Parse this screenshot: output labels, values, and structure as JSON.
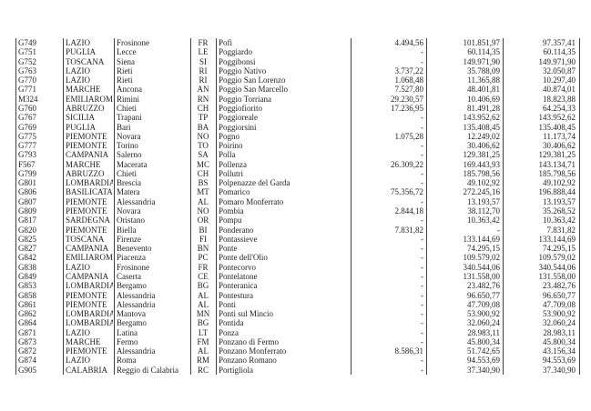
{
  "rows": [
    {
      "code": "G749",
      "region": "LAZIO",
      "province": "Frosinone",
      "sigla": "FR",
      "comune": "Pofi",
      "v1": "4.494,56",
      "v2": "101.851,97",
      "v3": "97.357,41"
    },
    {
      "code": "G751",
      "region": "PUGLIA",
      "province": "Lecce",
      "sigla": "LE",
      "comune": "Poggiardo",
      "v1": "-",
      "v2": "60.114,35",
      "v3": "60.114,35"
    },
    {
      "code": "G752",
      "region": "TOSCANA",
      "province": "Siena",
      "sigla": "SI",
      "comune": "Poggibonsi",
      "v1": "-",
      "v2": "149.971,90",
      "v3": "149.971,90"
    },
    {
      "code": "G763",
      "region": "LAZIO",
      "province": "Rieti",
      "sigla": "RI",
      "comune": "Poggio Nativo",
      "v1": "3.737,22",
      "v2": "35.788,09",
      "v3": "32.050,87"
    },
    {
      "code": "G770",
      "region": "LAZIO",
      "province": "Rieti",
      "sigla": "RI",
      "comune": "Poggio San Lorenzo",
      "v1": "1.068,48",
      "v2": "11.365,88",
      "v3": "10.297,40"
    },
    {
      "code": "G771",
      "region": "MARCHE",
      "province": "Ancona",
      "sigla": "AN",
      "comune": "Poggio San Marcello",
      "v1": "7.527,80",
      "v2": "48.401,81",
      "v3": "40.874,01"
    },
    {
      "code": "M324",
      "region": "EMILIAROMA",
      "province": "Rimini",
      "sigla": "RN",
      "comune": "Poggio Torriana",
      "v1": "29.230,57",
      "v2": "10.406,69",
      "v3": "18.823,88"
    },
    {
      "code": "G760",
      "region": "ABRUZZO",
      "province": "Chieti",
      "sigla": "CH",
      "comune": "Poggiofiorito",
      "v1": "17.236,95",
      "v2": "81.491,28",
      "v3": "64.254,33"
    },
    {
      "code": "G767",
      "region": "SICILIA",
      "province": "Trapani",
      "sigla": "TP",
      "comune": "Poggioreale",
      "v1": "-",
      "v2": "143.952,62",
      "v3": "143.952,62"
    },
    {
      "code": "G769",
      "region": "PUGLIA",
      "province": "Bari",
      "sigla": "BA",
      "comune": "Poggiorsini",
      "v1": "-",
      "v2": "135.408,45",
      "v3": "135.408,45"
    },
    {
      "code": "G775",
      "region": "PIEMONTE",
      "province": "Novara",
      "sigla": "NO",
      "comune": "Pogno",
      "v1": "1.075,28",
      "v2": "12.249,02",
      "v3": "11.173,74"
    },
    {
      "code": "G777",
      "region": "PIEMONTE",
      "province": "Torino",
      "sigla": "TO",
      "comune": "Poirino",
      "v1": "-",
      "v2": "30.406,62",
      "v3": "30.406,62"
    },
    {
      "code": "G793",
      "region": "CAMPANIA",
      "province": "Salerno",
      "sigla": "SA",
      "comune": "Polla",
      "v1": "-",
      "v2": "129.381,25",
      "v3": "129.381,25"
    },
    {
      "code": "F567",
      "region": "MARCHE",
      "province": "Macerata",
      "sigla": "MC",
      "comune": "Pollenza",
      "v1": "26.309,22",
      "v2": "169.443,93",
      "v3": "143.134,71"
    },
    {
      "code": "G799",
      "region": "ABRUZZO",
      "province": "Chieti",
      "sigla": "CH",
      "comune": "Pollutri",
      "v1": "-",
      "v2": "185.798,56",
      "v3": "185.798,56"
    },
    {
      "code": "G801",
      "region": "LOMBARDIA",
      "province": "Brescia",
      "sigla": "BS",
      "comune": "Polpenazze del Garda",
      "v1": "-",
      "v2": "49.102,92",
      "v3": "49.102,92"
    },
    {
      "code": "G806",
      "region": "BASILICATA",
      "province": "Matera",
      "sigla": "MT",
      "comune": "Pomarico",
      "v1": "75.356,72",
      "v2": "272.245,16",
      "v3": "196.888,44"
    },
    {
      "code": "G807",
      "region": "PIEMONTE",
      "province": "Alessandria",
      "sigla": "AL",
      "comune": "Pomaro Monferrato",
      "v1": "-",
      "v2": "13.193,57",
      "v3": "13.193,57"
    },
    {
      "code": "G809",
      "region": "PIEMONTE",
      "province": "Novara",
      "sigla": "NO",
      "comune": "Pombia",
      "v1": "2.844,18",
      "v2": "38.112,70",
      "v3": "35.268,52"
    },
    {
      "code": "G817",
      "region": "SARDEGNA",
      "province": "Oristano",
      "sigla": "OR",
      "comune": "Pompu",
      "v1": "-",
      "v2": "10.363,42",
      "v3": "10.363,42"
    },
    {
      "code": "G820",
      "region": "PIEMONTE",
      "province": "Biella",
      "sigla": "BI",
      "comune": "Ponderano",
      "v1": "7.831,82",
      "v2": "-",
      "v3": "7.831,82"
    },
    {
      "code": "G825",
      "region": "TOSCANA",
      "province": "Firenze",
      "sigla": "FI",
      "comune": "Pontassieve",
      "v1": "-",
      "v2": "133.144,69",
      "v3": "133.144,69"
    },
    {
      "code": "G827",
      "region": "CAMPANIA",
      "province": "Benevento",
      "sigla": "BN",
      "comune": "Ponte",
      "v1": "-",
      "v2": "74.295,15",
      "v3": "74.295,15"
    },
    {
      "code": "G842",
      "region": "EMILIAROMA",
      "province": "Piacenza",
      "sigla": "PC",
      "comune": "Ponte dell'Olio",
      "v1": "-",
      "v2": "109.579,02",
      "v3": "109.579,02"
    },
    {
      "code": "G838",
      "region": "LAZIO",
      "province": "Frosinone",
      "sigla": "FR",
      "comune": "Pontecorvo",
      "v1": "-",
      "v2": "340.544,06",
      "v3": "340.544,06"
    },
    {
      "code": "G849",
      "region": "CAMPANIA",
      "province": "Caserta",
      "sigla": "CE",
      "comune": "Pontelatone",
      "v1": "-",
      "v2": "131.558,00",
      "v3": "131.558,00"
    },
    {
      "code": "G853",
      "region": "LOMBARDIA",
      "province": "Bergamo",
      "sigla": "BG",
      "comune": "Ponteranica",
      "v1": "-",
      "v2": "23.482,76",
      "v3": "23.482,76"
    },
    {
      "code": "G858",
      "region": "PIEMONTE",
      "province": "Alessandria",
      "sigla": "AL",
      "comune": "Pontestura",
      "v1": "-",
      "v2": "96.650,77",
      "v3": "96.650,77"
    },
    {
      "code": "G861",
      "region": "PIEMONTE",
      "province": "Alessandria",
      "sigla": "AL",
      "comune": "Ponti",
      "v1": "-",
      "v2": "47.709,08",
      "v3": "47.709,08"
    },
    {
      "code": "G862",
      "region": "LOMBARDIA",
      "province": "Mantova",
      "sigla": "MN",
      "comune": "Ponti sul Mincio",
      "v1": "-",
      "v2": "53.900,92",
      "v3": "53.900,92"
    },
    {
      "code": "G864",
      "region": "LOMBARDIA",
      "province": "Bergamo",
      "sigla": "BG",
      "comune": "Pontida",
      "v1": "-",
      "v2": "32.060,24",
      "v3": "32.060,24"
    },
    {
      "code": "G871",
      "region": "LAZIO",
      "province": "Latina",
      "sigla": "LT",
      "comune": "Ponza",
      "v1": "-",
      "v2": "28.983,11",
      "v3": "28.983,11"
    },
    {
      "code": "G873",
      "region": "MARCHE",
      "province": "Fermo",
      "sigla": "FM",
      "comune": "Ponzano di Fermo",
      "v1": "-",
      "v2": "45.800,34",
      "v3": "45.800,34"
    },
    {
      "code": "G872",
      "region": "PIEMONTE",
      "province": "Alessandria",
      "sigla": "AL",
      "comune": "Ponzano Monferrato",
      "v1": "8.586,31",
      "v2": "51.742,65",
      "v3": "43.156,34"
    },
    {
      "code": "G874",
      "region": "LAZIO",
      "province": "Roma",
      "sigla": "RM",
      "comune": "Ponzano Romano",
      "v1": "-",
      "v2": "94.553,69",
      "v3": "94.553,69"
    },
    {
      "code": "G905",
      "region": "CALABRIA",
      "province": "Reggio di Calabria",
      "sigla": "RC",
      "comune": "Portigliola",
      "v1": "-",
      "v2": "37.340,90",
      "v3": "37.340,90"
    }
  ]
}
